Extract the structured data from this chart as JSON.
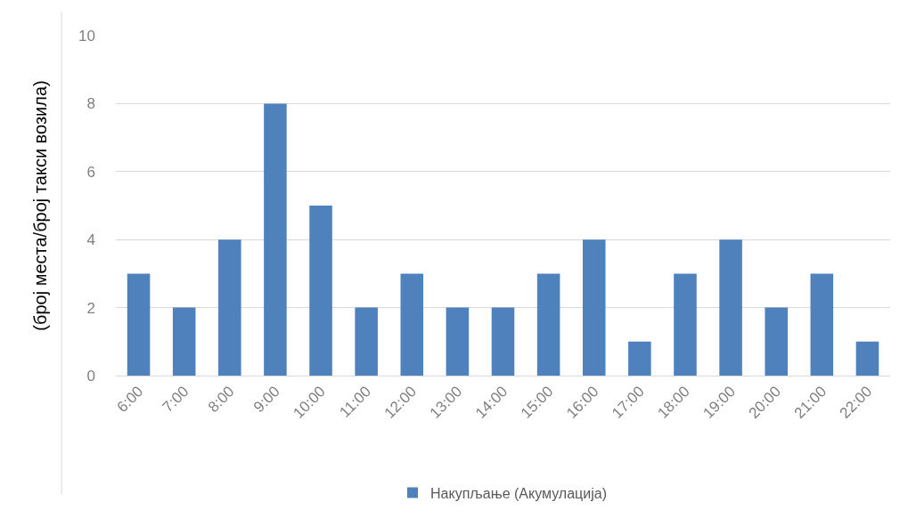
{
  "chart_data": {
    "type": "bar",
    "ylabel": "(број места/број такси возила)",
    "categories": [
      "6:00",
      "7:00",
      "8:00",
      "9:00",
      "10:00",
      "11:00",
      "12:00",
      "13:00",
      "14:00",
      "15:00",
      "16:00",
      "17:00",
      "18:00",
      "19:00",
      "20:00",
      "21:00",
      "22:00"
    ],
    "series": [
      {
        "name": "Накупљање (Акумулација)",
        "color": "#4f81bd",
        "values": [
          3,
          2,
          4,
          8,
          5,
          2,
          3,
          2,
          2,
          3,
          4,
          1,
          3,
          4,
          2,
          3,
          1
        ]
      }
    ],
    "ylim": [
      0,
      10
    ],
    "yticks": [
      0,
      2,
      4,
      6,
      8,
      10
    ],
    "grid": "y",
    "legend": "bottom"
  }
}
